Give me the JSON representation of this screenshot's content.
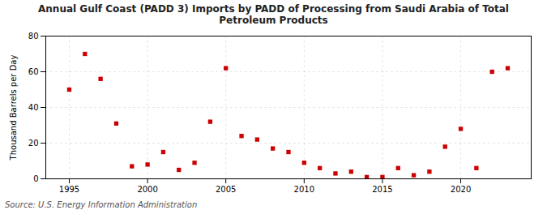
{
  "chart_data": {
    "type": "scatter",
    "title": "Annual Gulf Coast (PADD 3) Imports by PADD of Processing from Saudi Arabia of Total\nPetroleum Products",
    "ylabel": "Thousand Barrels per Day",
    "source": "Source: U.S. Energy Information Administration",
    "x": [
      1995,
      1996,
      1997,
      1998,
      1999,
      2000,
      2001,
      2002,
      2003,
      2004,
      2005,
      2006,
      2007,
      2008,
      2009,
      2010,
      2011,
      2012,
      2013,
      2014,
      2015,
      2016,
      2017,
      2018,
      2019,
      2020,
      2021,
      2022,
      2023
    ],
    "values": [
      50,
      70,
      56,
      31,
      7,
      8,
      15,
      5,
      9,
      32,
      62,
      24,
      22,
      17,
      15,
      9,
      6,
      3,
      4,
      1,
      1,
      6,
      2,
      4,
      18,
      28,
      6,
      60,
      62
    ],
    "color": "#cc0000",
    "marker": "square",
    "xlim": [
      1993.5,
      2024.5
    ],
    "xticks": [
      1995,
      2000,
      2005,
      2010,
      2015,
      2020
    ],
    "ylim": [
      0,
      80
    ],
    "yticks": [
      0,
      20,
      40,
      60,
      80
    ],
    "grid": true
  }
}
